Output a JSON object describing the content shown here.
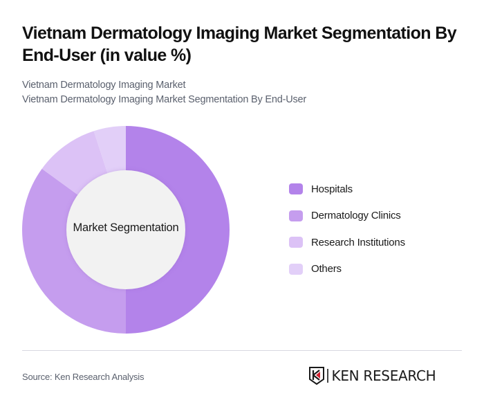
{
  "header": {
    "title": "Vietnam Dermatology Imaging Market Segmentation By End-User (in value %)",
    "subtitle_line1": "Vietnam Dermatology Imaging Market",
    "subtitle_line2": "Vietnam Dermatology Imaging Market Segmentation By End-User"
  },
  "chart": {
    "center_label": "Market Segmentation"
  },
  "legend": {
    "items": [
      {
        "label": "Hospitals",
        "color": "#b383ea"
      },
      {
        "label": "Dermatology Clinics",
        "color": "#c59dee"
      },
      {
        "label": "Research Institutions",
        "color": "#dcc2f6"
      },
      {
        "label": "Others",
        "color": "#e2cff8"
      }
    ]
  },
  "footer": {
    "source": "Source: Ken Research Analysis",
    "logo_text": "KEN RESEARCH"
  },
  "chart_data": {
    "type": "pie",
    "subtype": "donut",
    "title": "Vietnam Dermatology Imaging Market Segmentation By End-User (in value %)",
    "subtitle": "Vietnam Dermatology Imaging Market Segmentation By End-User",
    "center_label": "Market Segmentation",
    "categories": [
      "Hospitals",
      "Dermatology Clinics",
      "Research Institutions",
      "Others"
    ],
    "values": [
      50,
      35,
      10,
      5
    ],
    "colors": [
      "#b383ea",
      "#c59dee",
      "#dcc2f6",
      "#e2cff8"
    ],
    "unit": "%",
    "legend_position": "right",
    "start_angle": "12 o'clock, clockwise"
  }
}
